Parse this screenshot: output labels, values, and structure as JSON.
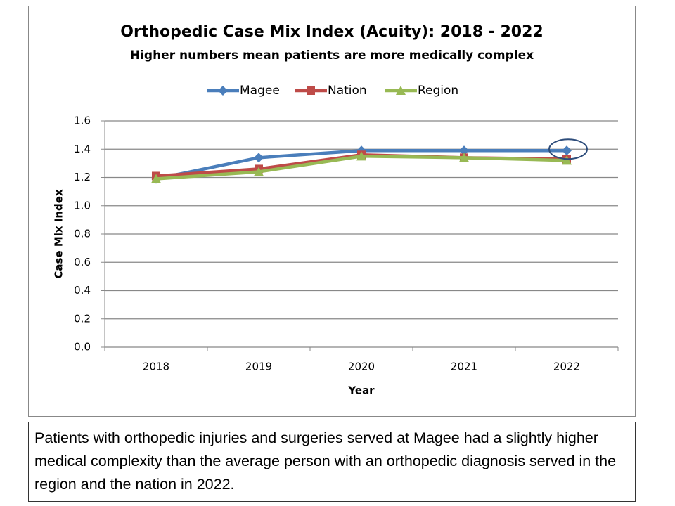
{
  "chart_data": {
    "type": "line",
    "title": "Orthopedic Case Mix Index (Acuity): 2018 - 2022",
    "subtitle": "Higher numbers mean patients are more medically complex",
    "x_label": "Year",
    "y_label": "Case Mix Index",
    "categories": [
      "2018",
      "2019",
      "2020",
      "2021",
      "2022"
    ],
    "series": [
      {
        "name": "Magee",
        "color": "#4a7ebb",
        "marker": "diamond",
        "values": [
          1.19,
          1.34,
          1.39,
          1.39,
          1.39
        ]
      },
      {
        "name": "Nation",
        "color": "#be4b48",
        "marker": "square",
        "values": [
          1.21,
          1.26,
          1.36,
          1.34,
          1.33
        ]
      },
      {
        "name": "Region",
        "color": "#98b954",
        "marker": "triangle",
        "values": [
          1.19,
          1.24,
          1.35,
          1.34,
          1.32
        ]
      }
    ],
    "ylim": [
      0,
      1.6
    ],
    "yticks": [
      {
        "value": 0,
        "label": "0.0"
      },
      0.2,
      0.4,
      0.6,
      0.8,
      {
        "value": 1,
        "label": "1.0"
      },
      1.2,
      1.4,
      1.6
    ],
    "grid": true,
    "legend": "top"
  },
  "caption": "Patients with orthopedic injuries and surgeries served at Magee had a slightly higher medical complexity than the average person with an orthopedic diagnosis served in the region and the nation in 2022."
}
